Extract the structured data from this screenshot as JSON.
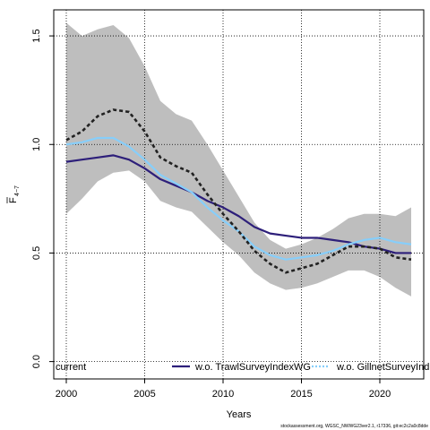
{
  "chart_data": {
    "type": "line",
    "xlabel": "Years",
    "ylabel_main": "F",
    "ylabel_sub": "4−7",
    "xlim": [
      1999.2,
      2022.8
    ],
    "ylim": [
      -0.08,
      1.62
    ],
    "x_ticks": [
      2000,
      2005,
      2010,
      2015,
      2020
    ],
    "y_ticks": [
      0.0,
      0.5,
      1.0,
      1.5
    ],
    "y_tick_labels": [
      "0.0",
      "0.5",
      "1.0",
      "1.5"
    ],
    "grid": true,
    "band": {
      "color": "#bebebe",
      "x": [
        2000,
        2001,
        2002,
        2003,
        2004,
        2005,
        2006,
        2007,
        2008,
        2009,
        2010,
        2011,
        2012,
        2013,
        2014,
        2015,
        2016,
        2017,
        2018,
        2019,
        2020,
        2021,
        2022
      ],
      "upper": [
        1.56,
        1.5,
        1.53,
        1.55,
        1.49,
        1.36,
        1.2,
        1.14,
        1.11,
        1.0,
        0.88,
        0.76,
        0.64,
        0.56,
        0.52,
        0.54,
        0.57,
        0.61,
        0.66,
        0.68,
        0.68,
        0.67,
        0.71
      ],
      "lower": [
        0.68,
        0.75,
        0.83,
        0.87,
        0.88,
        0.83,
        0.74,
        0.71,
        0.69,
        0.62,
        0.55,
        0.49,
        0.41,
        0.36,
        0.33,
        0.34,
        0.36,
        0.39,
        0.42,
        0.42,
        0.39,
        0.34,
        0.3
      ]
    },
    "series": [
      {
        "name": "current",
        "color": "#222222",
        "style": "dashed",
        "x": [
          2000,
          2001,
          2002,
          2003,
          2004,
          2005,
          2006,
          2007,
          2008,
          2009,
          2010,
          2011,
          2012,
          2013,
          2014,
          2015,
          2016,
          2017,
          2018,
          2019,
          2020,
          2021,
          2022
        ],
        "values": [
          1.02,
          1.06,
          1.13,
          1.16,
          1.15,
          1.06,
          0.94,
          0.9,
          0.87,
          0.77,
          0.68,
          0.6,
          0.51,
          0.45,
          0.41,
          0.43,
          0.45,
          0.49,
          0.53,
          0.53,
          0.52,
          0.48,
          0.47
        ]
      },
      {
        "name": "w.o. TrawlSurveyIndexWG",
        "color": "#2d1f7a",
        "style": "solid",
        "x": [
          2000,
          2001,
          2002,
          2003,
          2004,
          2005,
          2006,
          2007,
          2008,
          2009,
          2010,
          2011,
          2012,
          2013,
          2014,
          2015,
          2016,
          2017,
          2018,
          2019,
          2020,
          2021,
          2022
        ],
        "values": [
          0.92,
          0.93,
          0.94,
          0.95,
          0.93,
          0.89,
          0.84,
          0.81,
          0.78,
          0.74,
          0.71,
          0.67,
          0.62,
          0.59,
          0.58,
          0.57,
          0.57,
          0.56,
          0.55,
          0.53,
          0.52,
          0.5,
          0.5
        ]
      },
      {
        "name": "w.o. GillnetSurveyIndex",
        "color": "#87cefa",
        "style": "solid",
        "x": [
          2000,
          2001,
          2002,
          2003,
          2004,
          2005,
          2006,
          2007,
          2008,
          2009,
          2010,
          2011,
          2012,
          2013,
          2014,
          2015,
          2016,
          2017,
          2018,
          2019,
          2020,
          2021,
          2022
        ],
        "values": [
          1.0,
          1.01,
          1.03,
          1.03,
          0.99,
          0.93,
          0.86,
          0.82,
          0.78,
          0.71,
          0.65,
          0.6,
          0.53,
          0.49,
          0.47,
          0.48,
          0.49,
          0.51,
          0.54,
          0.56,
          0.57,
          0.55,
          0.54
        ]
      }
    ],
    "legend": {
      "placement": "bottom",
      "entries": [
        "current",
        "w.o. TrawlSurveyIndexWG",
        "w.o. GillnetSurveyIndex"
      ],
      "labels_as_shown": [
        "current",
        "w.o. TrawlSurveyIndexWG",
        "w.o. GillnetSurveyInd"
      ]
    }
  },
  "footer": "stockassessment.org, WGSC_NWWG23ver2.1, r17336, git:ec2c2a0c8dde"
}
